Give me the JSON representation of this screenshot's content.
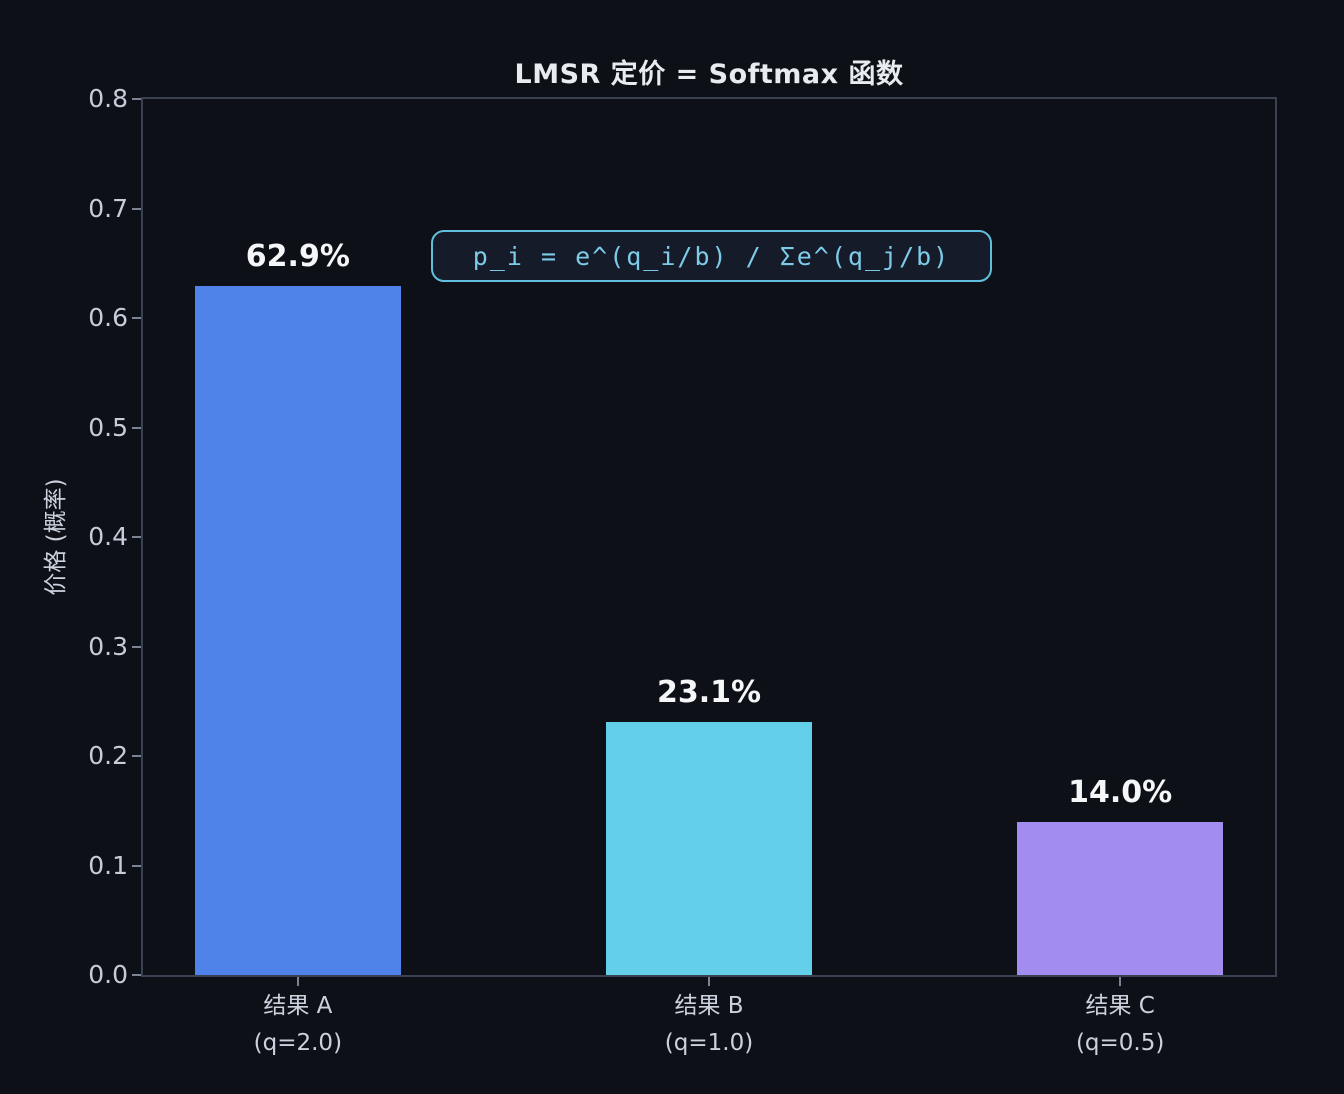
{
  "chart_data": {
    "type": "bar",
    "title": "LMSR 定价 = Softmax 函数",
    "ylabel": "价格 (概率)",
    "xlabel": "",
    "categories": [
      "结果 A",
      "结果 B",
      "结果 C"
    ],
    "category_sublabels": [
      "(q=2.0)",
      "(q=1.0)",
      "(q=0.5)"
    ],
    "values": [
      0.629,
      0.231,
      0.14
    ],
    "value_labels": [
      "62.9%",
      "23.1%",
      "14.0%"
    ],
    "bar_colors": [
      "#4f83ea",
      "#63cfe9",
      "#a38cf0"
    ],
    "ylim": [
      0,
      0.8
    ],
    "yticks": [
      0,
      0.1,
      0.2,
      0.3,
      0.4,
      0.5,
      0.6,
      0.7,
      0.8
    ],
    "grid": false,
    "legend": false,
    "annotation": {
      "text": "p_i = e^(q_i/b) / Σe^(q_j/b)",
      "text_color": "#7ecbe9",
      "border_color": "#62bedd",
      "background": "#151b28"
    },
    "colors": {
      "figure_background": "#0d1117",
      "axis_border": "#3a4150",
      "tick_mark": "#7c8494",
      "tick_label": "#c6ccd8",
      "title": "#e8ebf0",
      "value_label": "#f5f6f8"
    }
  }
}
